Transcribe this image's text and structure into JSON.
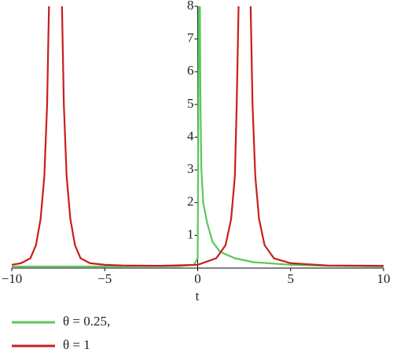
{
  "chart_data": {
    "type": "line",
    "x_label": "t",
    "xlim": [
      -10,
      10
    ],
    "ylim": [
      0,
      8
    ],
    "xticks": [
      {
        "value": -10,
        "label": "−10"
      },
      {
        "value": -5,
        "label": "−5"
      },
      0,
      5,
      10
    ],
    "yticks": [
      1,
      2,
      3,
      4,
      5,
      6,
      7,
      8
    ],
    "legend": "bottom-left",
    "series": [
      {
        "name": "θ = 0.25,",
        "color": "#5ac85a",
        "x": [
          -10,
          -5,
          -1,
          -0.2,
          0,
          0.06,
          0.12,
          0.15,
          0.2,
          0.3,
          0.5,
          0.8,
          1.2,
          2,
          3,
          5,
          7,
          10
        ],
        "values": [
          0.05,
          0.05,
          0.06,
          0.1,
          0.3,
          8,
          8,
          5,
          3,
          2,
          1.4,
          0.8,
          0.5,
          0.3,
          0.18,
          0.1,
          0.07,
          0.05
        ]
      },
      {
        "name": "θ = 1",
        "color": "#c81e1e",
        "x": [
          -10,
          -9.5,
          -9,
          -8.7,
          -8.45,
          -8.25,
          -8.1,
          -8.0,
          -7.65,
          -7.3,
          -7.2,
          -7.05,
          -6.85,
          -6.6,
          -6.3,
          -5.8,
          -5,
          -4,
          -2,
          0,
          1,
          1.5,
          1.8,
          2.0,
          2.1,
          2.2,
          2.55,
          2.85,
          2.95,
          3.1,
          3.3,
          3.6,
          4.1,
          5,
          7,
          10
        ],
        "values": [
          0.1,
          0.15,
          0.3,
          0.7,
          1.5,
          2.8,
          5,
          8,
          null,
          8,
          5,
          2.8,
          1.5,
          0.7,
          0.3,
          0.15,
          0.1,
          0.08,
          0.07,
          0.1,
          0.3,
          0.7,
          1.5,
          2.8,
          5,
          8,
          null,
          8,
          5,
          2.8,
          1.5,
          0.7,
          0.3,
          0.15,
          0.08,
          0.07
        ]
      }
    ]
  }
}
